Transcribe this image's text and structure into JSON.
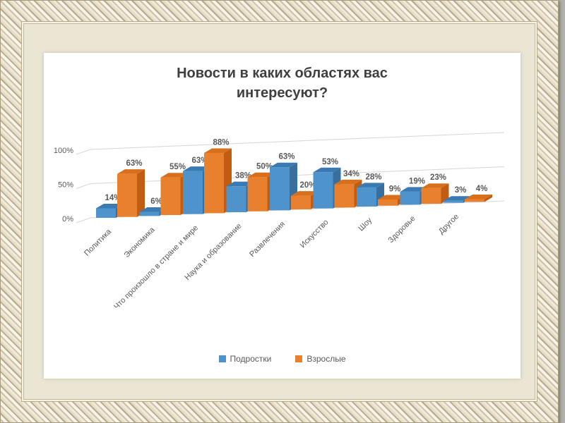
{
  "chart_data": {
    "type": "bar",
    "style": "3d-clustered",
    "title": "Новости в каких областях вас интересуют?",
    "categories": [
      "Политика",
      "Экономика",
      "Что произошло в стране и мире",
      "Наука и образование",
      "Развлечения",
      "Искусство",
      "Шоу",
      "Здоровье",
      "Другое"
    ],
    "series": [
      {
        "name": "Подростки",
        "values": [
          14,
          6,
          63,
          38,
          63,
          53,
          28,
          19,
          3
        ],
        "labels": [
          "14%",
          "6%",
          "63%",
          "38%",
          "63%",
          "53%",
          "28%",
          "19%",
          "3%"
        ],
        "color": "#4e93cc",
        "color_top": "#3a7ab3",
        "color_side": "#396f9f"
      },
      {
        "name": "Взрослые",
        "values": [
          63,
          55,
          88,
          50,
          20,
          34,
          9,
          23,
          4
        ],
        "labels": [
          "63%",
          "55%",
          "88%",
          "50%",
          "20%",
          "34%",
          "9%",
          "23%",
          "4%"
        ],
        "color": "#e8802e",
        "color_top": "#d96f1a",
        "color_side": "#c05d12"
      }
    ],
    "y_ticks": [
      "0%",
      "50%",
      "100%"
    ],
    "ylim": [
      0,
      100
    ],
    "grid": true,
    "legend_position": "bottom",
    "text_color": "#595959",
    "title_color": "#3f3f3f",
    "gridline_color": "#d6d6d6"
  }
}
